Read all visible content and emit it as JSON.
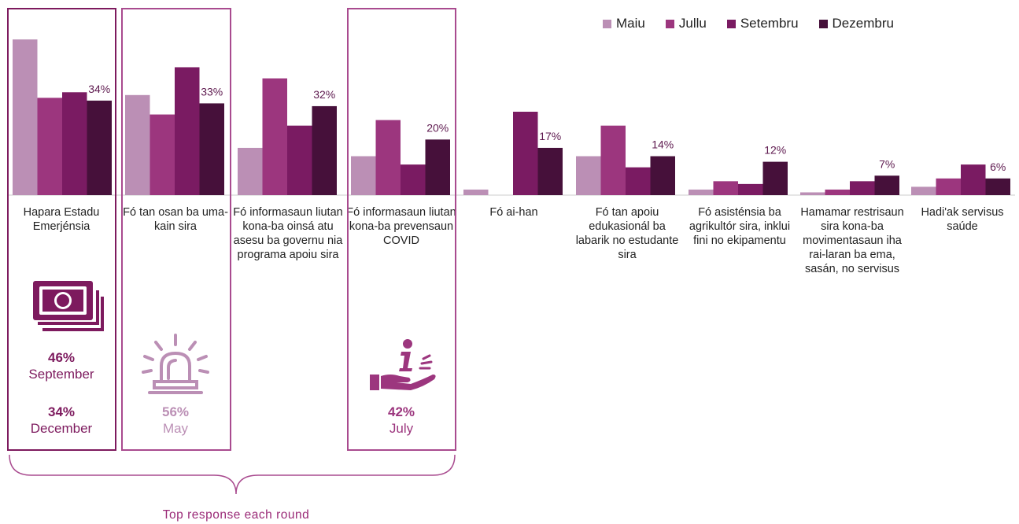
{
  "chart_data": {
    "type": "bar",
    "categories": [
      "Hapara Estadu Emerjénsia",
      "Fó tan osan ba uma-kain sira",
      "Fó informasaun liutan kona-ba oinsá atu asesu ba governu nia programa apoiu sira",
      "Fó informasaun liutan kona-ba prevensaun COVID",
      "Fó ai-han",
      "Fó tan apoiu edukasionál ba labarik no estudante sira",
      "Fó asisténsia ba agrikultór sira, inklui fini no ekipamentu",
      "Hamamar restrisaun sira kona-ba movimentasaun iha rai-laran ba ema, sasán, no servisus",
      "Hadi'ak servisus saúde"
    ],
    "series": [
      {
        "name": "Maiu",
        "color": "#bb8fb5",
        "values": [
          56,
          36,
          17,
          14,
          2,
          14,
          2,
          1,
          3
        ]
      },
      {
        "name": "Jullu",
        "color": "#9c367e",
        "values": [
          35,
          29,
          42,
          27,
          0,
          25,
          5,
          2,
          6
        ]
      },
      {
        "name": "Setembru",
        "color": "#7a1b62",
        "values": [
          37,
          46,
          25,
          11,
          30,
          10,
          4,
          5,
          11
        ]
      },
      {
        "name": "Dezembru",
        "color": "#46103a",
        "values": [
          34,
          33,
          32,
          20,
          17,
          14,
          12,
          7,
          6
        ]
      }
    ],
    "data_labels": [
      "34%",
      "33%",
      "32%",
      "20%",
      "17%",
      "14%",
      "12%",
      "7%",
      "6%"
    ],
    "ylim": [
      0,
      60
    ],
    "grid": false,
    "legend_position": "top-right"
  },
  "highlights": [
    {
      "pct1": "46%",
      "label1": "September",
      "pct2": "34%",
      "label2": "December",
      "icon": "money-icon",
      "color": "#7d1a5e"
    },
    {
      "pct1": "56%",
      "label1": "May",
      "icon": "alarm-siren-icon",
      "color": "#bb8fb5"
    },
    {
      "pct1": "42%",
      "label1": "July",
      "icon": "information-hand-icon",
      "color": "#9c367e"
    }
  ],
  "caption": "Top response each round"
}
